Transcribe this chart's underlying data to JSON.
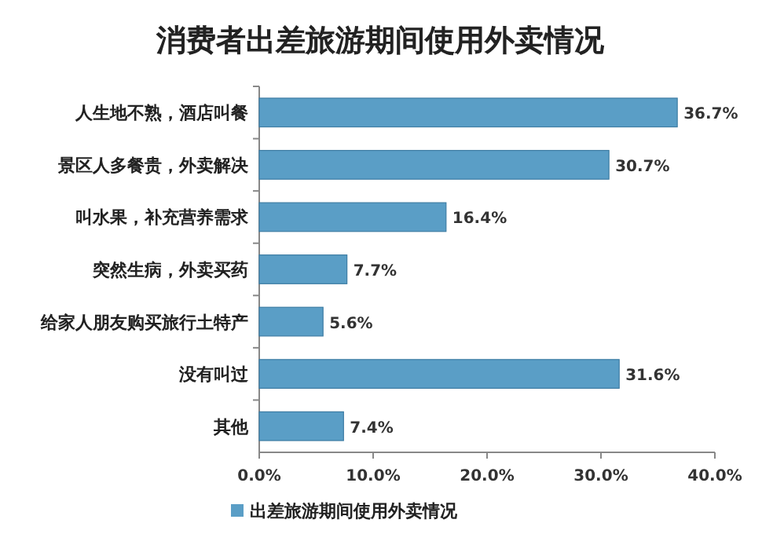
{
  "chart_data": {
    "type": "bar",
    "orientation": "horizontal",
    "title": "消费者出差旅游期间使用外卖情况",
    "categories": [
      "人生地不熟，酒店叫餐",
      "景区人多餐贵，外卖解决",
      "叫水果，补充营养需求",
      "突然生病，外卖买药",
      "给家人朋友购买旅行土特产",
      "没有叫过",
      "其他"
    ],
    "series": [
      {
        "name": "出差旅游期间使用外卖情况",
        "color": "#5a9ec6",
        "values": [
          36.7,
          30.7,
          16.4,
          7.7,
          5.6,
          31.6,
          7.4
        ],
        "value_labels": [
          "36.7%",
          "30.7%",
          "16.4%",
          "7.7%",
          "5.6%",
          "31.6%",
          "7.4%"
        ]
      }
    ],
    "xlim": [
      0,
      40
    ],
    "xticks": [
      {
        "value": 0,
        "label": "0.0%"
      },
      {
        "value": 10,
        "label": "10.0%"
      },
      {
        "value": 20,
        "label": "20.0%"
      },
      {
        "value": 30,
        "label": "30.0%"
      },
      {
        "value": 40,
        "label": "40.0%"
      }
    ],
    "legend": "bottom"
  }
}
